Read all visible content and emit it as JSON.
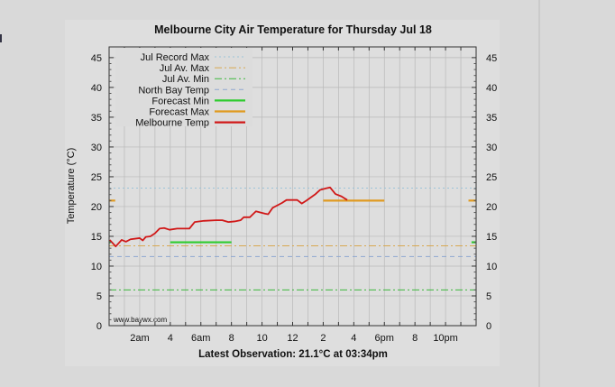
{
  "chart_data": {
    "type": "line",
    "title": "Melbourne City Air Temperature  for Thursday Jul 18",
    "xlabel": "Latest Observation: 21.1°C at 03:34pm",
    "ylabel": "Temperature (°C)",
    "watermark": "www.baywx.com",
    "xlim": [
      0,
      24
    ],
    "ylim": [
      0,
      46.8
    ],
    "grid": true,
    "legend_placement": "top-left",
    "x_ticks": [
      {
        "h": 2,
        "label": "2am"
      },
      {
        "h": 4,
        "label": "4"
      },
      {
        "h": 6,
        "label": "6am"
      },
      {
        "h": 8,
        "label": "8"
      },
      {
        "h": 10,
        "label": "10"
      },
      {
        "h": 12,
        "label": "12"
      },
      {
        "h": 14,
        "label": "2"
      },
      {
        "h": 16,
        "label": "4"
      },
      {
        "h": 18,
        "label": "6pm"
      },
      {
        "h": 20,
        "label": "8"
      },
      {
        "h": 22,
        "label": "10pm"
      }
    ],
    "y_ticks": [
      0,
      5,
      10,
      15,
      20,
      25,
      30,
      35,
      40,
      45
    ],
    "series": [
      {
        "name": "Jul Record Max",
        "color": "#9cc3d8",
        "style": "dotted",
        "points": [
          [
            0,
            23.1
          ],
          [
            24,
            23.1
          ]
        ]
      },
      {
        "name": "Jul Av. Max",
        "color": "#d8a850",
        "style": "dashdot",
        "points": [
          [
            0,
            13.4
          ],
          [
            24,
            13.4
          ]
        ]
      },
      {
        "name": "Jul Av. Min",
        "color": "#3cb83c",
        "style": "dashdot",
        "points": [
          [
            0,
            6.0
          ],
          [
            24,
            6.0
          ]
        ]
      },
      {
        "name": "North Bay Temp",
        "color": "#8fa8d0",
        "style": "dashed",
        "points": [
          [
            0,
            11.6
          ],
          [
            24,
            11.6
          ]
        ]
      },
      {
        "name": "Forecast Min",
        "color": "#2ecc2e",
        "style": "solid",
        "segments": [
          [
            [
              0,
              14
            ],
            [
              0.1,
              14
            ]
          ],
          [
            [
              4,
              14
            ],
            [
              8,
              14
            ]
          ],
          [
            [
              23.7,
              14
            ],
            [
              24,
              14
            ]
          ]
        ]
      },
      {
        "name": "Forecast Max",
        "color": "#e09a20",
        "style": "solid",
        "segments": [
          [
            [
              0,
              21
            ],
            [
              0.4,
              21
            ]
          ],
          [
            [
              14,
              21
            ],
            [
              18,
              21
            ]
          ],
          [
            [
              23.5,
              21
            ],
            [
              24,
              21
            ]
          ]
        ]
      },
      {
        "name": "Melbourne Temp",
        "color": "#d01818",
        "style": "solid",
        "points": [
          [
            0.04,
            14.4
          ],
          [
            0.43,
            13.3
          ],
          [
            0.82,
            14.4
          ],
          [
            1.1,
            14.1
          ],
          [
            1.4,
            14.5
          ],
          [
            2,
            14.7
          ],
          [
            2.2,
            14.3
          ],
          [
            2.4,
            14.9
          ],
          [
            2.7,
            15.0
          ],
          [
            3,
            15.5
          ],
          [
            3.3,
            16.3
          ],
          [
            3.6,
            16.4
          ],
          [
            3.95,
            16.1
          ],
          [
            4.45,
            16.3
          ],
          [
            5.25,
            16.3
          ],
          [
            5.6,
            17.4
          ],
          [
            6.2,
            17.6
          ],
          [
            7,
            17.7
          ],
          [
            7.4,
            17.7
          ],
          [
            7.8,
            17.4
          ],
          [
            8.2,
            17.5
          ],
          [
            8.6,
            17.7
          ],
          [
            8.8,
            18.2
          ],
          [
            9.2,
            18.2
          ],
          [
            9.6,
            19.2
          ],
          [
            10.2,
            18.8
          ],
          [
            10.4,
            18.7
          ],
          [
            10.7,
            19.8
          ],
          [
            11.3,
            20.6
          ],
          [
            11.6,
            21.1
          ],
          [
            12.3,
            21.1
          ],
          [
            12.6,
            20.5
          ],
          [
            12.9,
            21.0
          ],
          [
            13.5,
            22.1
          ],
          [
            13.8,
            22.8
          ],
          [
            14.25,
            23.1
          ],
          [
            14.45,
            23.2
          ],
          [
            14.8,
            22.1
          ],
          [
            15.2,
            21.7
          ],
          [
            15.57,
            21.1
          ]
        ]
      }
    ]
  }
}
